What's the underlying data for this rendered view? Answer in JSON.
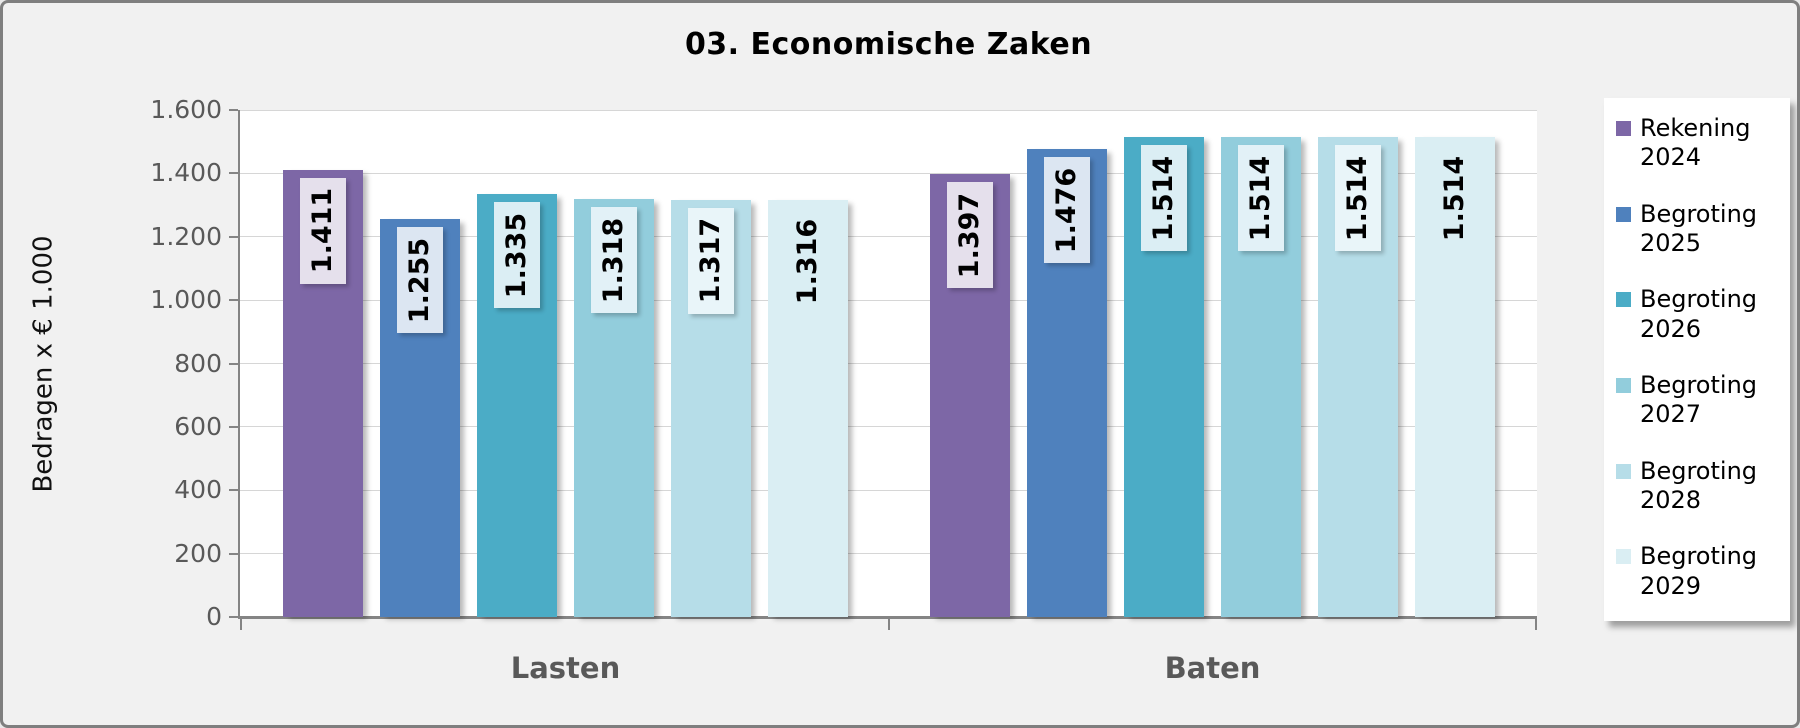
{
  "title": "03. Economische Zaken",
  "chart_data": {
    "type": "bar",
    "title": "03. Economische Zaken",
    "ylabel": "Bedragen x € 1.000",
    "xlabel": "",
    "ylim": [
      0,
      1600
    ],
    "ytick_step": 200,
    "ytick_labels": [
      "0",
      "200",
      "400",
      "600",
      "800",
      "1.000",
      "1.200",
      "1.400",
      "1.600"
    ],
    "grid": true,
    "legend_position": "right",
    "categories": [
      "Lasten",
      "Baten"
    ],
    "series": [
      {
        "name": "Rekening 2024",
        "values": [
          1411,
          1397
        ],
        "labels": [
          "1.411",
          "1.397"
        ],
        "color": "#7d67a6",
        "label_bg": "#e5e0ec"
      },
      {
        "name": "Begroting 2025",
        "values": [
          1255,
          1476
        ],
        "labels": [
          "1.255",
          "1.476"
        ],
        "color": "#4f81bd",
        "label_bg": "#dce6f2"
      },
      {
        "name": "Begroting 2026",
        "values": [
          1335,
          1514
        ],
        "labels": [
          "1.335",
          "1.514"
        ],
        "color": "#4bacc6",
        "label_bg": "#dbeef4"
      },
      {
        "name": "Begroting 2027",
        "values": [
          1318,
          1514
        ],
        "labels": [
          "1.318",
          "1.514"
        ],
        "color": "#92cddc",
        "label_bg": "#e2f1f7"
      },
      {
        "name": "Begroting 2028",
        "values": [
          1317,
          1514
        ],
        "labels": [
          "1.317",
          "1.514"
        ],
        "color": "#b6dde8",
        "label_bg": "#e9f5f9"
      },
      {
        "name": "Begroting 2029",
        "values": [
          1316,
          1514
        ],
        "labels": [
          "1.316",
          "1.514"
        ],
        "color": "#daeef3",
        "label_bg": "#daeef3"
      }
    ],
    "colors": {
      "background": "#f1f1f1",
      "plot_background": "#ffffff",
      "gridline": "#d6d6d6",
      "axis": "#848484",
      "tick_label": "#595959",
      "frame_border": "#7f7f7f"
    }
  }
}
